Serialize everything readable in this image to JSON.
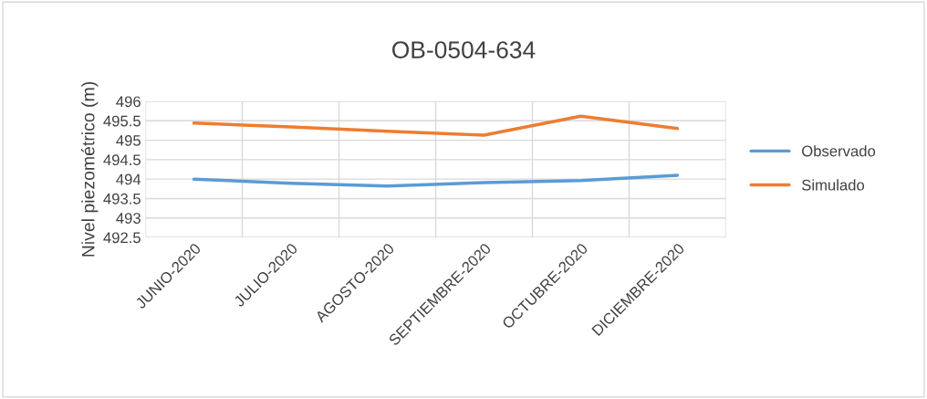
{
  "chart_data": {
    "type": "line",
    "title": "OB-0504-634",
    "ylabel": "Nivel piezométrico (m)",
    "categories": [
      "JUNIO-2020",
      "JULIO-2020",
      "AGOSTO-2020",
      "SEPTIEMBRE-2020",
      "OCTUBRE-2020",
      "DICIEMBRE-2020"
    ],
    "series": [
      {
        "name": "Observado",
        "color": "#5b9bd5",
        "values": [
          494.0,
          493.89,
          493.82,
          493.91,
          493.96,
          494.1
        ]
      },
      {
        "name": "Simulado",
        "color": "#ed7d31",
        "values": [
          495.44,
          495.34,
          495.23,
          495.13,
          495.62,
          495.3
        ]
      }
    ],
    "ylim": [
      492.5,
      496
    ],
    "yticks": [
      {
        "value": 492.5,
        "label": "492.5"
      },
      {
        "value": 493,
        "label": "493"
      },
      {
        "value": 493.5,
        "label": "493.5"
      },
      {
        "value": 494,
        "label": "494"
      },
      {
        "value": 494.5,
        "label": "494.5"
      },
      {
        "value": 495,
        "label": "495"
      },
      {
        "value": 495.5,
        "label": "495.5"
      },
      {
        "value": 496,
        "label": "496"
      }
    ],
    "grid": true,
    "legend": "right",
    "marker": "none",
    "line_style": "solid"
  }
}
